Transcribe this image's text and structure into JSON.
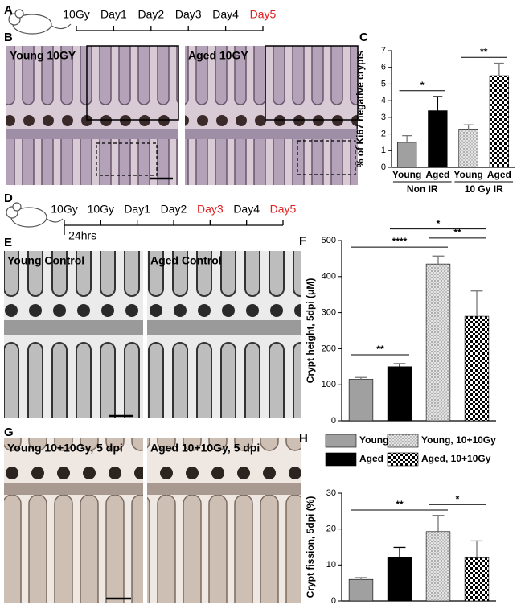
{
  "panel_labels": [
    "A",
    "B",
    "C",
    "D",
    "E",
    "F",
    "G",
    "H"
  ],
  "timelines": [
    {
      "labels": [
        "10Gy",
        "Day1",
        "Day2",
        "Day3",
        "Day4",
        "Day5"
      ],
      "colors": [
        "#000000",
        "#000000",
        "#000000",
        "#000000",
        "#000000",
        "#e02020"
      ]
    },
    {
      "labels": [
        "10Gy",
        "10Gy",
        "Day1",
        "Day2",
        "Day3",
        "Day4",
        "Day5"
      ],
      "colors": [
        "#000000",
        "#000000",
        "#000000",
        "#000000",
        "#e02020",
        "#000000",
        "#e02020"
      ],
      "interval_note": "24hrs"
    }
  ],
  "micrographs": [
    {
      "label": "Young 10GY"
    },
    {
      "label": "Aged 10GY"
    },
    {
      "label": "Young Control"
    },
    {
      "label": "Aged Control"
    },
    {
      "label": "Young 10+10Gy, 5 dpi"
    },
    {
      "label": "Aged 10+10Gy, 5 dpi"
    }
  ],
  "chart_data": [
    {
      "type": "bar",
      "y_label": "% of Ki67 negative crypts",
      "categories": [
        "Young",
        "Aged",
        "Young",
        "Aged"
      ],
      "values": [
        1.5,
        3.4,
        2.3,
        5.5
      ],
      "errors": [
        0.4,
        0.85,
        0.25,
        0.75
      ],
      "fills": [
        "#a0a0a0",
        "#000000",
        "pattern:dots",
        "pattern:checker"
      ],
      "ylim": [
        0,
        7
      ],
      "yticks": [
        0,
        1,
        2,
        3,
        4,
        5,
        6,
        7
      ],
      "groups": [
        {
          "label": "Non IR",
          "from": 0,
          "to": 1
        },
        {
          "label": "10 Gy IR",
          "from": 2,
          "to": 3
        }
      ],
      "significance": [
        {
          "text": "*",
          "from": 0,
          "to": 1
        },
        {
          "text": "**",
          "from": 2,
          "to": 3
        }
      ]
    },
    {
      "type": "bar",
      "y_label": "Crypt height, 5dpi (μM)",
      "categories": [
        null,
        null,
        null,
        null
      ],
      "values": [
        115,
        150,
        435,
        290
      ],
      "errors": [
        5,
        8,
        22,
        70
      ],
      "fills": [
        "#a0a0a0",
        "#000000",
        "pattern:dots",
        "pattern:checker"
      ],
      "ylim": [
        0,
        500
      ],
      "yticks": [
        0,
        100,
        200,
        300,
        400,
        500
      ],
      "significance": [
        {
          "text": "**",
          "from": 0,
          "to": 1
        },
        {
          "text": "****",
          "from": 0,
          "to": 2
        },
        {
          "text": "**",
          "from": 2,
          "to": 3
        },
        {
          "text": "*",
          "from": 1,
          "to": 3
        }
      ]
    },
    {
      "type": "bar",
      "y_label": "Crypt fission, 5dpi (%)",
      "categories": [
        null,
        null,
        null,
        null
      ],
      "values": [
        6,
        12.2,
        19.3,
        12
      ],
      "errors": [
        0.5,
        2.7,
        4.5,
        4.7
      ],
      "fills": [
        "#a0a0a0",
        "#000000",
        "pattern:dots",
        "pattern:checker"
      ],
      "legend": [
        "Young",
        "Aged",
        "Young, 10+10Gy",
        "Aged, 10+10Gy"
      ],
      "ylim": [
        0,
        30
      ],
      "yticks": [
        0,
        10,
        20,
        30
      ],
      "significance": [
        {
          "text": "**",
          "from": 0,
          "to": 2
        },
        {
          "text": "*",
          "from": 2,
          "to": 3
        }
      ]
    }
  ]
}
